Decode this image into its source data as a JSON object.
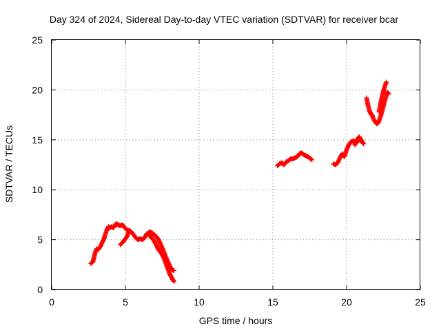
{
  "chart_data": {
    "type": "scatter",
    "title": "Day 324 of 2024, Sidereal Day-to-day VTEC variation (SDTVAR) for receiver bcar",
    "xlabel": "GPS time / hours",
    "ylabel": "SDTVAR / TECUs",
    "xlim": [
      0,
      25
    ],
    "ylim": [
      0,
      25
    ],
    "xticks": [
      0,
      5,
      10,
      15,
      20,
      25
    ],
    "yticks": [
      0,
      5,
      10,
      15,
      20,
      25
    ],
    "grid": true,
    "marker": "+",
    "color": "#ff0000",
    "series": [
      {
        "name": "SDTVAR",
        "segments": [
          {
            "x": [
              2.65,
              2.8,
              2.95,
              3.05,
              3.15,
              3.3,
              3.45,
              3.55,
              3.65,
              3.75,
              3.85,
              3.95,
              4.05,
              4.2,
              4.35,
              4.5,
              4.65,
              4.8,
              4.95,
              5.1,
              5.25,
              5.4,
              5.55,
              5.7,
              5.85,
              6.0,
              6.15,
              6.3,
              6.45,
              6.6,
              6.75,
              6.9,
              7.05,
              7.2,
              7.35,
              7.5,
              7.6,
              7.7,
              7.8,
              7.9,
              8.0,
              8.1,
              8.2,
              8.3
            ],
            "y": [
              2.6,
              2.8,
              3.7,
              4.1,
              4.0,
              4.3,
              4.8,
              5.1,
              5.6,
              6.0,
              6.3,
              6.2,
              6.3,
              6.2,
              6.6,
              6.5,
              6.4,
              6.5,
              6.2,
              6.0,
              5.9,
              5.8,
              5.5,
              5.2,
              5.0,
              5.1,
              5.0,
              5.2,
              5.6,
              5.6,
              5.2,
              5.0,
              4.6,
              4.1,
              3.8,
              3.5,
              3.2,
              2.8,
              2.4,
              2.0,
              1.6,
              1.3,
              1.0,
              0.8
            ]
          },
          {
            "x": [
              4.65,
              4.8,
              4.95,
              5.1,
              5.2,
              5.3
            ],
            "y": [
              4.5,
              4.7,
              5.0,
              5.3,
              5.7,
              5.9
            ]
          },
          {
            "x": [
              6.5,
              6.65,
              6.8,
              6.95,
              7.1,
              7.25,
              7.4,
              7.55,
              7.7,
              7.85,
              8.0,
              8.15,
              8.3
            ],
            "y": [
              5.6,
              5.8,
              5.7,
              5.5,
              5.3,
              5.0,
              4.5,
              4.0,
              3.4,
              2.9,
              2.4,
              2.0,
              1.9
            ]
          },
          {
            "x": [
              15.3,
              15.45,
              15.6,
              15.75,
              15.9,
              16.05,
              16.2,
              16.35,
              16.5,
              16.65,
              16.8,
              16.95,
              17.1,
              17.25,
              17.4,
              17.55,
              17.65
            ],
            "y": [
              12.4,
              12.6,
              12.7,
              12.5,
              12.8,
              12.9,
              13.1,
              13.1,
              13.2,
              13.3,
              13.6,
              13.7,
              13.5,
              13.4,
              13.3,
              13.1,
              13.0
            ]
          },
          {
            "x": [
              19.1,
              19.25,
              19.4,
              19.55,
              19.7,
              19.85,
              20.0,
              20.15,
              20.3,
              20.45,
              20.6,
              20.75,
              20.85,
              20.95,
              21.05,
              21.15
            ],
            "y": [
              12.6,
              12.5,
              12.7,
              13.2,
              13.6,
              13.3,
              14.0,
              14.5,
              14.8,
              14.9,
              14.8,
              15.1,
              15.3,
              15.1,
              14.8,
              14.6
            ]
          },
          {
            "x": [
              20.55,
              20.7,
              20.85,
              21.0,
              21.1
            ],
            "y": [
              14.5,
              14.8,
              15.0,
              14.9,
              14.7
            ]
          },
          {
            "x": [
              21.35,
              21.45,
              21.55,
              21.65,
              21.75,
              21.85,
              21.95,
              22.05,
              22.15,
              22.25,
              22.35,
              22.45,
              22.55,
              22.65,
              22.75,
              22.85
            ],
            "y": [
              19.2,
              18.5,
              17.9,
              17.6,
              17.4,
              17.0,
              16.8,
              16.6,
              16.7,
              17.1,
              17.6,
              18.1,
              18.7,
              19.2,
              19.8,
              19.6
            ]
          },
          {
            "x": [
              22.2,
              22.3,
              22.4,
              22.5,
              22.6,
              22.7
            ],
            "y": [
              17.8,
              18.6,
              19.3,
              19.9,
              20.4,
              20.8
            ]
          }
        ]
      }
    ]
  }
}
